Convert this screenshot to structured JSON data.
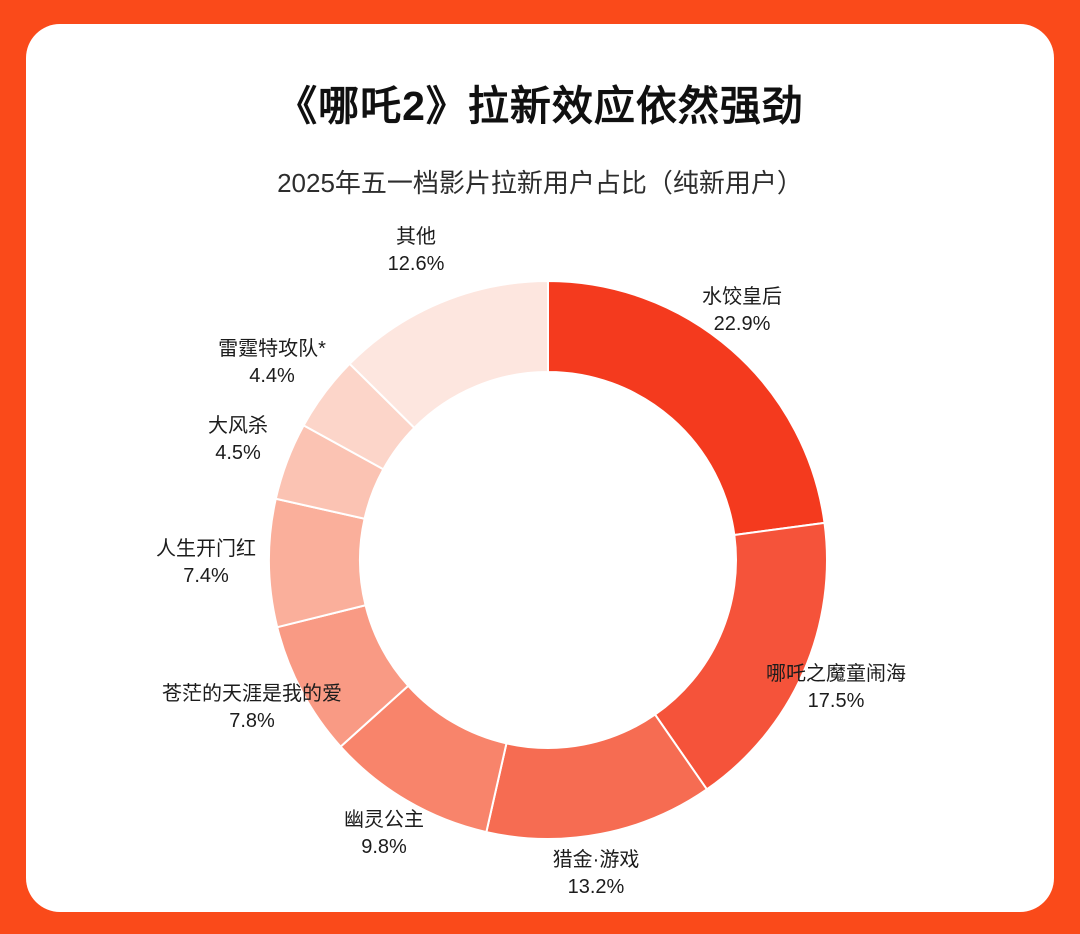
{
  "page": {
    "title": "《哪吒2》拉新效应依然强劲",
    "subtitle": "2025年五一档影片拉新用户占比（纯新用户）"
  },
  "theme": {
    "background": "#fa4a1a",
    "card": "#ffffff",
    "text": "#1c1c1c"
  },
  "chart_data": {
    "type": "pie",
    "donut": true,
    "title": "2025年五一档影片拉新用户占比（纯新用户）",
    "start_angle_deg": 0,
    "direction": "clockwise",
    "unit": "%",
    "segments": [
      {
        "label": "水饺皇后",
        "value": 22.9,
        "display": "22.9%",
        "color": "#f43a1e"
      },
      {
        "label": "哪吒之魔童闹海",
        "value": 17.5,
        "display": "17.5%",
        "color": "#f5533a"
      },
      {
        "label": "猎金·游戏",
        "value": 13.2,
        "display": "13.2%",
        "color": "#f66c52"
      },
      {
        "label": "幽灵公主",
        "value": 9.8,
        "display": "9.8%",
        "color": "#f8846b"
      },
      {
        "label": "苍茫的天涯是我的爱",
        "value": 7.8,
        "display": "7.8%",
        "color": "#f99a84"
      },
      {
        "label": "人生开门红",
        "value": 7.4,
        "display": "7.4%",
        "color": "#faaf9b"
      },
      {
        "label": "大风杀",
        "value": 4.5,
        "display": "4.5%",
        "color": "#fbc3b3"
      },
      {
        "label": "雷霆特攻队*",
        "value": 4.4,
        "display": "4.4%",
        "color": "#fcd5c9"
      },
      {
        "label": "其他",
        "value": 12.6,
        "display": "12.6%",
        "color": "#fde6df"
      }
    ]
  }
}
